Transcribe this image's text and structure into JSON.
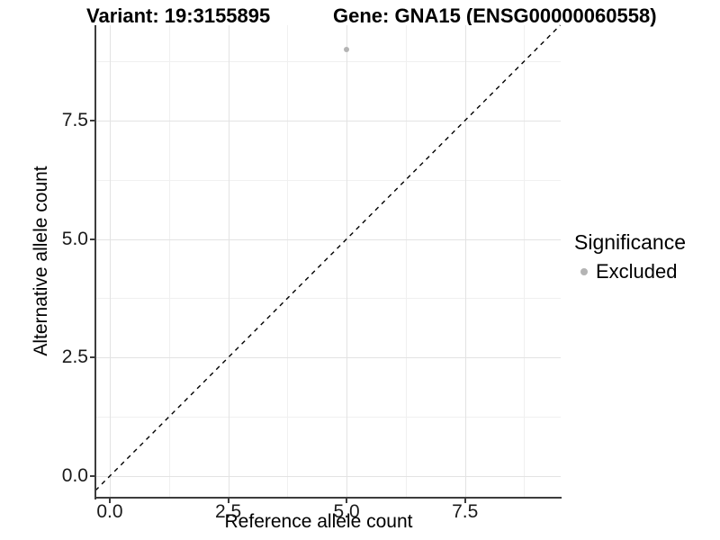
{
  "chart_data": {
    "type": "scatter",
    "title_left": "Variant: 19:3155895",
    "title_right": "Gene: GNA15 (ENSG00000060558)",
    "xlabel": "Reference allele count",
    "ylabel": "Alternative allele count",
    "x_ticks": [
      0.0,
      2.5,
      5.0,
      7.5
    ],
    "x_tick_labels": [
      "0.0",
      "2.5",
      "5.0",
      "7.5"
    ],
    "y_ticks": [
      0.0,
      2.5,
      5.0,
      7.5
    ],
    "y_tick_labels": [
      "0.0",
      "2.5",
      "5.0",
      "7.5"
    ],
    "x_minor_ticks": [
      1.25,
      3.75,
      6.25,
      8.75
    ],
    "y_minor_ticks": [
      1.25,
      3.75,
      6.25,
      8.75
    ],
    "xlim": [
      -0.304,
      9.52
    ],
    "ylim": [
      -0.456,
      9.51
    ],
    "grid": true,
    "points": [
      {
        "x": 5,
        "y": 9,
        "series": "Excluded",
        "color": "#b4b4b4",
        "radius_px": 3
      }
    ],
    "reference_line": {
      "kind": "abline",
      "slope": 1,
      "intercept": 0,
      "style": "dashed",
      "color": "#000000"
    },
    "legend": {
      "title": "Significance",
      "position": "right",
      "items": [
        {
          "label": "Excluded",
          "color": "#b4b4b4",
          "marker": "circle"
        }
      ]
    }
  },
  "style_colors": {
    "axis_line": "#3c3c3c",
    "major_grid": "#e3e3e3",
    "minor_grid": "#f0f0f0",
    "excluded_point": "#b4b4b4"
  }
}
